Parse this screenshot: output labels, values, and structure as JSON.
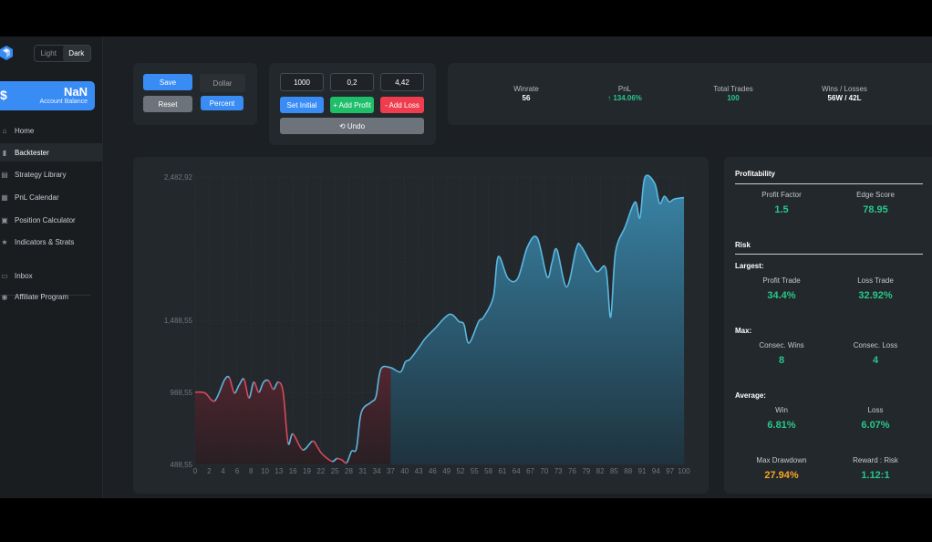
{
  "theme": {
    "light": "Light",
    "dark": "Dark"
  },
  "balance": {
    "symbol": "$",
    "value": "NaN",
    "label": "Account Balance"
  },
  "nav": [
    {
      "label": "Home",
      "icon": "home-icon"
    },
    {
      "label": "Backtester",
      "icon": "bar-chart-icon"
    },
    {
      "label": "Strategy Library",
      "icon": "library-icon"
    },
    {
      "label": "PnL Calendar",
      "icon": "calendar-icon"
    },
    {
      "label": "Position Calculator",
      "icon": "calculator-icon"
    },
    {
      "label": "Indicators & Strats",
      "icon": "star-icon"
    },
    {
      "label": "Inbox",
      "icon": "inbox-icon"
    },
    {
      "label": "Affiliate Program",
      "icon": "user-icon"
    }
  ],
  "controls": {
    "save": "Save",
    "reset": "Reset",
    "dollar": "Dollar",
    "percent": "Percent"
  },
  "inputs": {
    "initial": "1000",
    "profit": "0,2",
    "loss": "4,42"
  },
  "actions": {
    "set_initial": "Set Initial",
    "add_profit": "+ Add Profit",
    "add_loss": "- Add Loss",
    "undo": "⟲ Undo"
  },
  "stats": [
    {
      "label": "Winrate",
      "value": "56"
    },
    {
      "label": "PnL",
      "value": "↑ 134.06%"
    },
    {
      "label": "Total Trades",
      "value": "100"
    },
    {
      "label": "Wins / Losses",
      "value": "56W / 42L"
    }
  ],
  "profitability": {
    "title": "Profitability",
    "profit_factor_label": "Profit Factor",
    "profit_factor": "1.5",
    "edge_score_label": "Edge Score",
    "edge_score": "78.95"
  },
  "risk": {
    "title": "Risk",
    "largest_label": "Largest:",
    "profit_trade_label": "Profit Trade",
    "profit_trade": "34.4%",
    "loss_trade_label": "Loss Trade",
    "loss_trade": "32.92%",
    "max_label": "Max:",
    "consec_wins_label": "Consec. Wins",
    "consec_wins": "8",
    "consec_loss_label": "Consec. Loss",
    "consec_loss": "4",
    "average_label": "Average:",
    "win_label": "Win",
    "win": "6.81%",
    "loss_label": "Loss",
    "loss": "6.07%",
    "drawdown_label": "Max Drawdown",
    "drawdown": "27.94%",
    "rr_label": "Reward : Risk",
    "rr": "1.12:1"
  },
  "colors": {
    "accent": "#3a8cf5",
    "profit": "#27c78a",
    "loss": "#ef3d4f",
    "curve_up": "#5bb8e0",
    "curve_down": "#d64a5c",
    "warning": "#f5a623"
  },
  "chart_data": {
    "type": "area",
    "y_ticks": [
      "2,482,92",
      "1,488,55",
      "988,55",
      "488,55"
    ],
    "y_tick_values": [
      2482.92,
      1488.55,
      988.55,
      488.55
    ],
    "x_ticks": [
      "0",
      "2",
      "4",
      "6",
      "8",
      "10",
      "13",
      "16",
      "19",
      "22",
      "25",
      "28",
      "31",
      "34",
      "37",
      "40",
      "43",
      "46",
      "49",
      "52",
      "55",
      "58",
      "61",
      "64",
      "67",
      "70",
      "73",
      "76",
      "79",
      "82",
      "85",
      "88",
      "91",
      "94",
      "97",
      "100"
    ],
    "ylim": [
      488.55,
      2482.92
    ],
    "xlim": [
      0,
      100
    ],
    "grid": true,
    "series": [
      {
        "x": [
          0,
          2,
          4,
          6,
          7,
          8,
          9,
          10,
          11,
          12,
          13,
          14,
          15,
          16,
          17,
          18,
          19,
          20,
          22,
          24,
          25,
          26,
          28,
          29,
          30,
          31,
          32,
          33,
          34,
          36,
          37,
          38,
          40,
          42,
          43,
          44,
          46,
          47,
          49,
          52,
          54,
          55,
          56,
          58,
          59,
          61,
          62,
          64,
          66,
          68,
          70,
          72,
          73,
          74,
          76,
          78,
          79,
          82,
          84,
          85,
          86,
          88,
          90,
          91,
          92,
          94,
          95,
          96,
          97,
          98,
          100
        ],
        "y": [
          990,
          985,
          930,
          1075,
          1090,
          985,
          1040,
          1080,
          950,
          1060,
          990,
          1060,
          1070,
          1010,
          1060,
          990,
          640,
          700,
          590,
          650,
          610,
          560,
          510,
          530,
          520,
          500,
          580,
          600,
          850,
          920,
          960,
          1150,
          1160,
          1130,
          1200,
          1220,
          1310,
          1360,
          1430,
          1530,
          1480,
          1460,
          1330,
          1480,
          1510,
          1650,
          1930,
          1780,
          1780,
          2000,
          2060,
          1790,
          1890,
          1980,
          1720,
          1990,
          2000,
          1830,
          1850,
          1510,
          1960,
          2140,
          2310,
          2200,
          2480,
          2440,
          2300,
          2350,
          2310,
          2330,
          2340
        ]
      }
    ]
  }
}
